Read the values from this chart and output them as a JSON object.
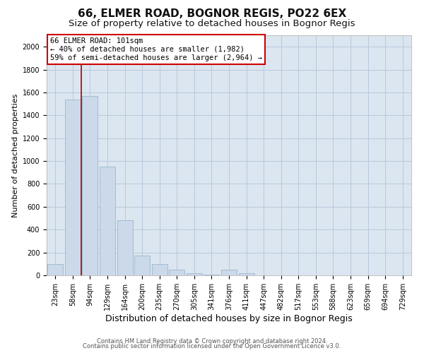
{
  "title1": "66, ELMER ROAD, BOGNOR REGIS, PO22 6EX",
  "title2": "Size of property relative to detached houses in Bognor Regis",
  "xlabel": "Distribution of detached houses by size in Bognor Regis",
  "ylabel": "Number of detached properties",
  "categories": [
    "23sqm",
    "58sqm",
    "94sqm",
    "129sqm",
    "164sqm",
    "200sqm",
    "235sqm",
    "270sqm",
    "305sqm",
    "341sqm",
    "376sqm",
    "411sqm",
    "447sqm",
    "482sqm",
    "517sqm",
    "553sqm",
    "588sqm",
    "623sqm",
    "659sqm",
    "694sqm",
    "729sqm"
  ],
  "values": [
    100,
    1540,
    1570,
    950,
    480,
    175,
    100,
    50,
    20,
    5,
    50,
    20,
    0,
    0,
    0,
    0,
    0,
    0,
    0,
    0,
    0
  ],
  "bar_color": "#ccd9ea",
  "bar_edge_color": "#8fafc8",
  "red_line_index": 1.5,
  "annotation_text": "66 ELMER ROAD: 101sqm\n← 40% of detached houses are smaller (1,982)\n59% of semi-detached houses are larger (2,964) →",
  "footnote1": "Contains HM Land Registry data © Crown copyright and database right 2024.",
  "footnote2": "Contains public sector information licensed under the Open Government Licence v3.0.",
  "bg_color": "#ffffff",
  "plot_bg_color": "#dce6f0",
  "grid_color": "#b8c8dc",
  "title1_fontsize": 11,
  "title2_fontsize": 9.5,
  "xlabel_fontsize": 9,
  "ylabel_fontsize": 8,
  "tick_fontsize": 7,
  "ann_fontsize": 7.5,
  "footnote_fontsize": 6,
  "ylim_max": 2100,
  "yticks": [
    0,
    200,
    400,
    600,
    800,
    1000,
    1200,
    1400,
    1600,
    1800,
    2000
  ]
}
